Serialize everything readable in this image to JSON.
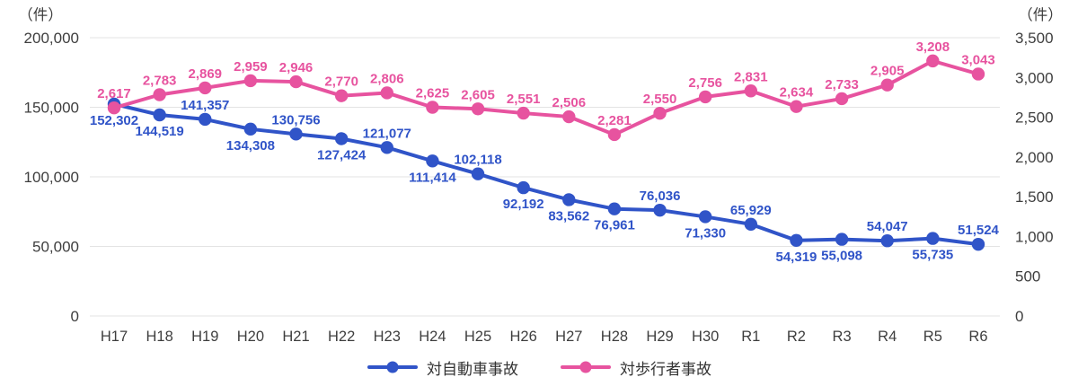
{
  "chart_data": {
    "type": "line",
    "categories": [
      "H17",
      "H18",
      "H19",
      "H20",
      "H21",
      "H22",
      "H23",
      "H24",
      "H25",
      "H26",
      "H27",
      "H28",
      "H29",
      "H30",
      "R1",
      "R2",
      "R3",
      "R4",
      "R5",
      "R6"
    ],
    "series": [
      {
        "name": "対自動車事故",
        "color": "#3054c8",
        "axis": "left",
        "values": [
          152302,
          144519,
          141357,
          134308,
          130756,
          127424,
          121077,
          111414,
          102118,
          92192,
          83562,
          76961,
          76036,
          71330,
          65929,
          54319,
          55098,
          54047,
          55735,
          51524
        ],
        "label_positions": [
          "below",
          "below",
          "above",
          "below",
          "above",
          "below",
          "above",
          "below",
          "above",
          "below",
          "below",
          "below",
          "above",
          "below",
          "above",
          "below",
          "below",
          "above",
          "below",
          "above"
        ]
      },
      {
        "name": "対歩行者事故",
        "color": "#e7539f",
        "axis": "right",
        "values": [
          2617,
          2783,
          2869,
          2959,
          2946,
          2770,
          2806,
          2625,
          2605,
          2551,
          2506,
          2281,
          2550,
          2756,
          2831,
          2634,
          2733,
          2905,
          3208,
          3043
        ],
        "label_positions": [
          "above",
          "above",
          "above",
          "above",
          "above",
          "above",
          "above",
          "above",
          "above",
          "above",
          "above",
          "above",
          "above",
          "above",
          "above",
          "above",
          "above",
          "above",
          "above",
          "above"
        ]
      }
    ],
    "left_axis": {
      "unit": "（件）",
      "min": 0,
      "max": 200000,
      "ticks": [
        200000,
        150000,
        100000,
        50000,
        0
      ]
    },
    "right_axis": {
      "unit": "（件）",
      "min": 0,
      "max": 3500,
      "ticks": [
        3500,
        3000,
        2500,
        2000,
        1500,
        1000,
        500,
        0
      ]
    },
    "grid": "horizontal",
    "legend_position": "bottom"
  },
  "style": {
    "grid_color": "#e3e3e3",
    "axis_text_color": "#3e3e3e",
    "legend_text_color": "#333333"
  }
}
